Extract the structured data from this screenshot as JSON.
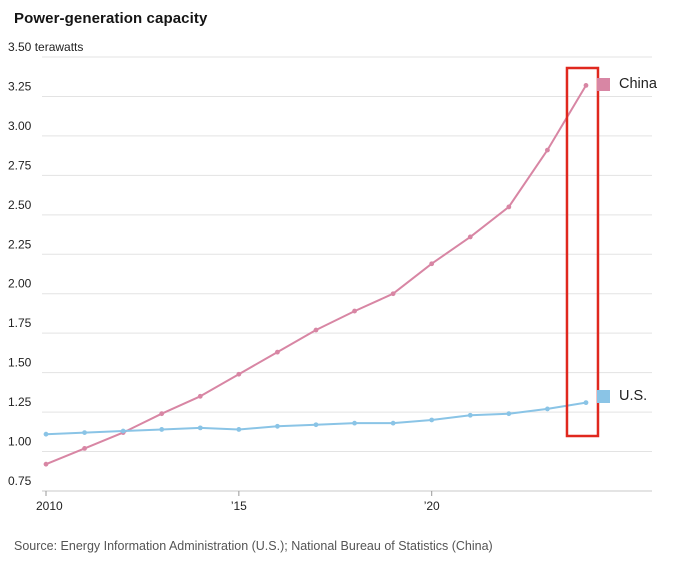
{
  "title": "Power-generation capacity",
  "unit_label": "terawatts",
  "source": "Source: Energy Information Administration (U.S.); National Bureau of Statistics (China)",
  "legend": {
    "china_label": "China",
    "us_label": "U.S."
  },
  "colors": {
    "china": "#d886a4",
    "us": "#8ac4e6",
    "grid": "#e3e3e3",
    "axis": "#c9c9c9",
    "tick": "#999999",
    "highlight_box": "#e0281e",
    "tick_text": "#222222"
  },
  "chart_data": {
    "type": "line",
    "title": "Power-generation capacity",
    "ylabel": "terawatts",
    "x": [
      2010,
      2011,
      2012,
      2013,
      2014,
      2015,
      2016,
      2017,
      2018,
      2019,
      2020,
      2021,
      2022,
      2023,
      2024
    ],
    "series": [
      {
        "name": "China",
        "color_key": "china",
        "values": [
          0.92,
          1.02,
          1.12,
          1.24,
          1.35,
          1.49,
          1.63,
          1.77,
          1.89,
          2.0,
          2.19,
          2.36,
          2.55,
          2.91,
          3.32
        ]
      },
      {
        "name": "U.S.",
        "color_key": "us",
        "values": [
          1.11,
          1.12,
          1.13,
          1.14,
          1.15,
          1.14,
          1.16,
          1.17,
          1.18,
          1.18,
          1.2,
          1.23,
          1.24,
          1.27,
          1.31
        ]
      }
    ],
    "ylim": [
      0.75,
      3.5
    ],
    "ytick_step": 0.25,
    "xticks": [
      {
        "value": 2010,
        "label": "2010"
      },
      {
        "value": 2015,
        "label": "’15"
      },
      {
        "value": 2020,
        "label": "’20"
      }
    ],
    "grid": true,
    "legend_position": "right",
    "highlight": {
      "x": 2024,
      "note": "red box around final year values"
    }
  }
}
